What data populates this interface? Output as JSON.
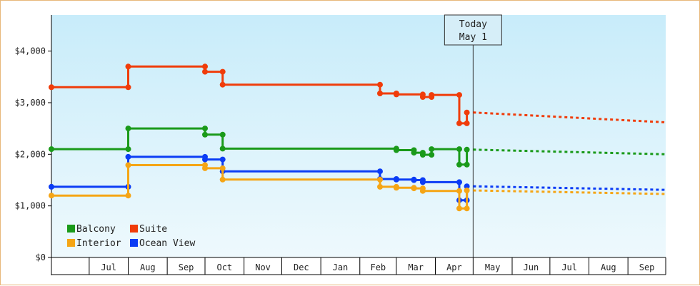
{
  "chart_data": {
    "type": "line",
    "title": "",
    "xlabel": "",
    "ylabel": "",
    "ylim": [
      0,
      4700
    ],
    "yticks": [
      {
        "value": 0,
        "label": "$0"
      },
      {
        "value": 1000,
        "label": "$1,000"
      },
      {
        "value": 2000,
        "label": "$2,000"
      },
      {
        "value": 3000,
        "label": "$3,000"
      },
      {
        "value": 4000,
        "label": "$4,000"
      }
    ],
    "xlim": [
      "2023-06-01",
      "2024-10-01"
    ],
    "month_labels": [
      {
        "date": "2023-07-01",
        "label": "Jul"
      },
      {
        "date": "2023-08-01",
        "label": "Aug"
      },
      {
        "date": "2023-09-01",
        "label": "Sep"
      },
      {
        "date": "2023-10-01",
        "label": "Oct"
      },
      {
        "date": "2023-11-01",
        "label": "Nov"
      },
      {
        "date": "2023-12-01",
        "label": "Dec"
      },
      {
        "date": "2024-01-01",
        "label": "Jan"
      },
      {
        "date": "2024-02-01",
        "label": "Feb"
      },
      {
        "date": "2024-03-01",
        "label": "Mar"
      },
      {
        "date": "2024-04-01",
        "label": "Apr"
      },
      {
        "date": "2024-05-01",
        "label": "May"
      },
      {
        "date": "2024-06-01",
        "label": "Jun"
      },
      {
        "date": "2024-07-01",
        "label": "Jul"
      },
      {
        "date": "2024-08-01",
        "label": "Aug"
      },
      {
        "date": "2024-09-01",
        "label": "Sep"
      }
    ],
    "today": {
      "date": "2024-05-01",
      "line1": "Today",
      "line2": "May 1"
    },
    "grid": false,
    "legend_placement": "bottom-left",
    "series": [
      {
        "name": "Suite",
        "color": "#f03c0a",
        "points": [
          [
            "2023-06-01",
            3300
          ],
          [
            "2023-08-01",
            3300
          ],
          [
            "2023-08-01",
            3700
          ],
          [
            "2023-10-01",
            3700
          ],
          [
            "2023-10-01",
            3600
          ],
          [
            "2023-10-15",
            3600
          ],
          [
            "2023-10-15",
            3350
          ],
          [
            "2024-02-17",
            3350
          ],
          [
            "2024-02-17",
            3180
          ],
          [
            "2024-03-01",
            3180
          ],
          [
            "2024-03-01",
            3160
          ],
          [
            "2024-03-22",
            3160
          ],
          [
            "2024-03-22",
            3110
          ],
          [
            "2024-03-29",
            3110
          ],
          [
            "2024-03-29",
            3150
          ],
          [
            "2024-04-20",
            3150
          ],
          [
            "2024-04-20",
            2600
          ],
          [
            "2024-04-26",
            2600
          ],
          [
            "2024-04-26",
            2810
          ]
        ],
        "forecast": [
          [
            "2024-05-01",
            2810
          ],
          [
            "2024-10-01",
            2620
          ]
        ]
      },
      {
        "name": "Balcony",
        "color": "#1a9a1a",
        "points": [
          [
            "2023-06-01",
            2100
          ],
          [
            "2023-08-01",
            2100
          ],
          [
            "2023-08-01",
            2500
          ],
          [
            "2023-10-01",
            2500
          ],
          [
            "2023-10-01",
            2380
          ],
          [
            "2023-10-15",
            2380
          ],
          [
            "2023-10-15",
            2110
          ],
          [
            "2024-03-01",
            2110
          ],
          [
            "2024-03-01",
            2080
          ],
          [
            "2024-03-15",
            2080
          ],
          [
            "2024-03-15",
            2030
          ],
          [
            "2024-03-22",
            2030
          ],
          [
            "2024-03-22",
            1990
          ],
          [
            "2024-03-29",
            1990
          ],
          [
            "2024-03-29",
            2100
          ],
          [
            "2024-04-20",
            2100
          ],
          [
            "2024-04-20",
            1800
          ],
          [
            "2024-04-26",
            1800
          ],
          [
            "2024-04-26",
            2090
          ]
        ],
        "forecast": [
          [
            "2024-05-01",
            2090
          ],
          [
            "2024-10-01",
            2000
          ]
        ]
      },
      {
        "name": "Ocean View",
        "color": "#0b3cf5",
        "points": [
          [
            "2023-06-01",
            1370
          ],
          [
            "2023-08-01",
            1370
          ],
          [
            "2023-08-01",
            1950
          ],
          [
            "2023-10-01",
            1950
          ],
          [
            "2023-10-01",
            1900
          ],
          [
            "2023-10-15",
            1900
          ],
          [
            "2023-10-15",
            1670
          ],
          [
            "2024-02-17",
            1670
          ],
          [
            "2024-02-17",
            1520
          ],
          [
            "2024-03-01",
            1520
          ],
          [
            "2024-03-01",
            1510
          ],
          [
            "2024-03-15",
            1510
          ],
          [
            "2024-03-15",
            1500
          ],
          [
            "2024-03-22",
            1500
          ],
          [
            "2024-03-22",
            1460
          ],
          [
            "2024-04-20",
            1460
          ],
          [
            "2024-04-20",
            1110
          ],
          [
            "2024-04-26",
            1110
          ],
          [
            "2024-04-26",
            1380
          ]
        ],
        "forecast": [
          [
            "2024-05-01",
            1380
          ],
          [
            "2024-10-01",
            1310
          ]
        ]
      },
      {
        "name": "Interior",
        "color": "#f5a515",
        "points": [
          [
            "2023-06-01",
            1200
          ],
          [
            "2023-08-01",
            1200
          ],
          [
            "2023-08-01",
            1790
          ],
          [
            "2023-10-01",
            1790
          ],
          [
            "2023-10-01",
            1730
          ],
          [
            "2023-10-15",
            1730
          ],
          [
            "2023-10-15",
            1510
          ],
          [
            "2024-02-17",
            1510
          ],
          [
            "2024-02-17",
            1370
          ],
          [
            "2024-03-01",
            1370
          ],
          [
            "2024-03-01",
            1350
          ],
          [
            "2024-03-15",
            1350
          ],
          [
            "2024-03-15",
            1340
          ],
          [
            "2024-03-22",
            1340
          ],
          [
            "2024-03-22",
            1290
          ],
          [
            "2024-04-20",
            1290
          ],
          [
            "2024-04-20",
            950
          ],
          [
            "2024-04-26",
            950
          ],
          [
            "2024-04-26",
            1300
          ]
        ],
        "forecast": [
          [
            "2024-05-01",
            1300
          ],
          [
            "2024-10-01",
            1230
          ]
        ]
      }
    ],
    "legend": [
      {
        "name": "Balcony",
        "color": "#1a9a1a"
      },
      {
        "name": "Suite",
        "color": "#f03c0a"
      },
      {
        "name": "Interior",
        "color": "#f5a515"
      },
      {
        "name": "Ocean View",
        "color": "#0b3cf5"
      }
    ]
  }
}
